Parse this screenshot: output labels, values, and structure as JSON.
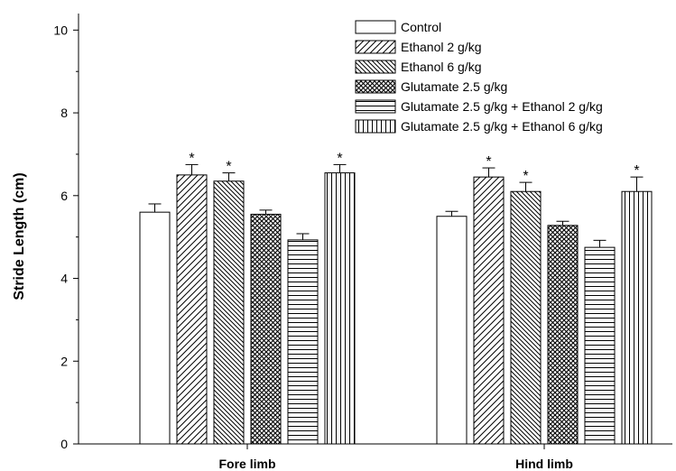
{
  "chart_data": {
    "type": "bar",
    "categories": [
      "Fore limb",
      "Hind limb"
    ],
    "ylabel": "Stride Length (cm)",
    "xlabel": "",
    "ylim": [
      0,
      10.4
    ],
    "yticks": [
      0,
      2,
      4,
      6,
      8,
      10
    ],
    "legend_position": "top-right",
    "grid": false,
    "series": [
      {
        "name": "Control",
        "pattern": "none",
        "values": [
          5.6,
          5.5
        ],
        "errors": [
          0.2,
          0.12
        ],
        "significant": [
          false,
          false
        ]
      },
      {
        "name": "Ethanol 2 g/kg",
        "pattern": "diag-right",
        "values": [
          6.5,
          6.45
        ],
        "errors": [
          0.25,
          0.22
        ],
        "significant": [
          true,
          true
        ]
      },
      {
        "name": "Ethanol 6 g/kg",
        "pattern": "diag-left",
        "values": [
          6.35,
          6.1
        ],
        "errors": [
          0.2,
          0.22
        ],
        "significant": [
          true,
          true
        ]
      },
      {
        "name": "Glutamate 2.5 g/kg",
        "pattern": "crosshatch",
        "values": [
          5.55,
          5.28
        ],
        "errors": [
          0.1,
          0.1
        ],
        "significant": [
          false,
          false
        ]
      },
      {
        "name": "Glutamate 2.5 g/kg + Ethanol 2 g/kg",
        "pattern": "horizontal",
        "values": [
          4.93,
          4.75
        ],
        "errors": [
          0.15,
          0.17
        ],
        "significant": [
          false,
          false
        ]
      },
      {
        "name": "Glutamate 2.5 g/kg + Ethanol 6 g/kg",
        "pattern": "vertical",
        "values": [
          6.55,
          6.1
        ],
        "errors": [
          0.2,
          0.35
        ],
        "significant": [
          true,
          true
        ]
      }
    ],
    "significance_marker": "*"
  }
}
